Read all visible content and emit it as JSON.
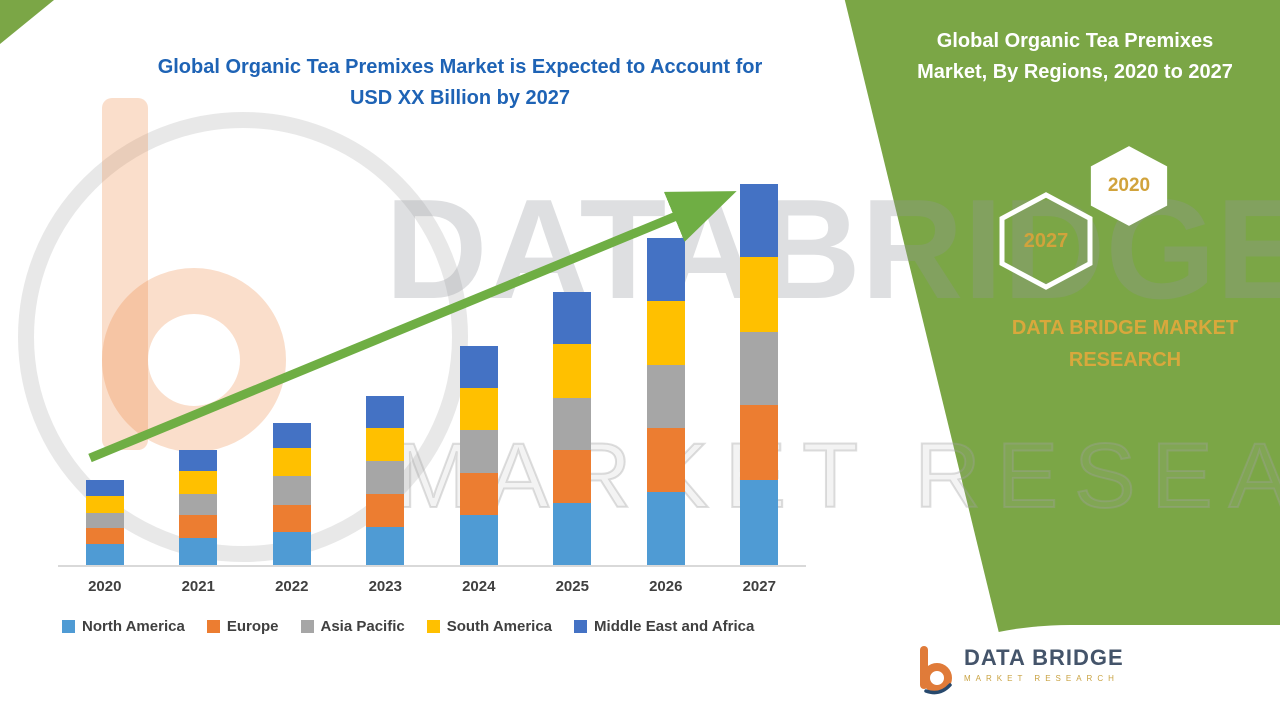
{
  "header": {
    "chart_title_line1": "Global Organic Tea Premixes Market is Expected to Account for",
    "chart_title_line2": "USD XX Billion by 2027"
  },
  "right_panel": {
    "title_line1": "Global Organic Tea Premixes",
    "title_line2": "Market, By Regions, 2020 to 2027",
    "badges": [
      {
        "label": "2027"
      },
      {
        "label": "2020"
      }
    ],
    "brand_line1": "DATA BRIDGE MARKET",
    "brand_line2": "RESEARCH"
  },
  "watermark": {
    "line1": "DATABRIDGE",
    "line2": "MARKET RESEARCH"
  },
  "footer_logo": {
    "name": "DATA BRIDGE",
    "tagline": "MARKET RESEARCH"
  },
  "colors": {
    "panel_green": "#7BA646",
    "arrow_green": "#6FAE44",
    "title_blue": "#1E63B5",
    "gold": "#D1A33C",
    "logo_orange": "#E07B39",
    "logo_navy": "#27496D",
    "axis_gray": "#D9D9D9",
    "label_dark": "#404040"
  },
  "chart_data": {
    "type": "bar",
    "stacked": true,
    "title": "Global Organic Tea Premixes Market is Expected to Account for USD XX Billion by 2027",
    "categories": [
      "2020",
      "2021",
      "2022",
      "2023",
      "2024",
      "2025",
      "2026",
      "2027"
    ],
    "series": [
      {
        "name": "North America",
        "color": "#4F9BD4",
        "values": [
          5.5,
          7,
          8.5,
          10,
          13,
          16,
          19,
          22
        ]
      },
      {
        "name": "Europe",
        "color": "#EC7D31",
        "values": [
          4,
          6,
          7,
          8.5,
          11,
          14,
          16.5,
          19.5
        ]
      },
      {
        "name": "Asia Pacific",
        "color": "#A6A6A6",
        "values": [
          4,
          5.5,
          7.5,
          8.5,
          11,
          13.5,
          16.5,
          19
        ]
      },
      {
        "name": "South America",
        "color": "#FFC000",
        "values": [
          4.5,
          6,
          7.5,
          8.5,
          11,
          14,
          16.5,
          19.5
        ]
      },
      {
        "name": "Middle East and Africa",
        "color": "#4472C4",
        "values": [
          4,
          5.5,
          6.5,
          8.5,
          11,
          13.5,
          16.5,
          19
        ]
      }
    ],
    "totals": [
      22,
      30,
      37,
      44,
      57,
      71,
      85,
      99
    ],
    "ylim": [
      0,
      100
    ],
    "xlabel": "",
    "ylabel": "",
    "grid": false,
    "legend_position": "bottom",
    "annotations": [
      "upward trend arrow across bars"
    ]
  }
}
